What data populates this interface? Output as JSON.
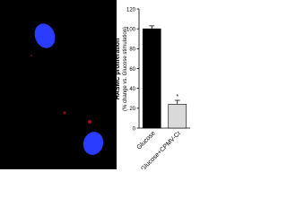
{
  "chart_data": {
    "type": "bar",
    "ylabel": "HASMC proliferation",
    "ylabel_sub": "(% change vs. Glucose stimulation)",
    "categories": [
      "Glucose",
      "Glucose+CPMV-Cr"
    ],
    "values": [
      100,
      24
    ],
    "errors": [
      3,
      4
    ],
    "colors": [
      "#000000",
      "#d9d9d9"
    ],
    "ylim": [
      0,
      120
    ],
    "yticks": [
      0,
      20,
      40,
      60,
      80,
      100,
      120
    ],
    "annotation": {
      "text": "*",
      "category": "Glucose+CPMV-Cr"
    }
  }
}
